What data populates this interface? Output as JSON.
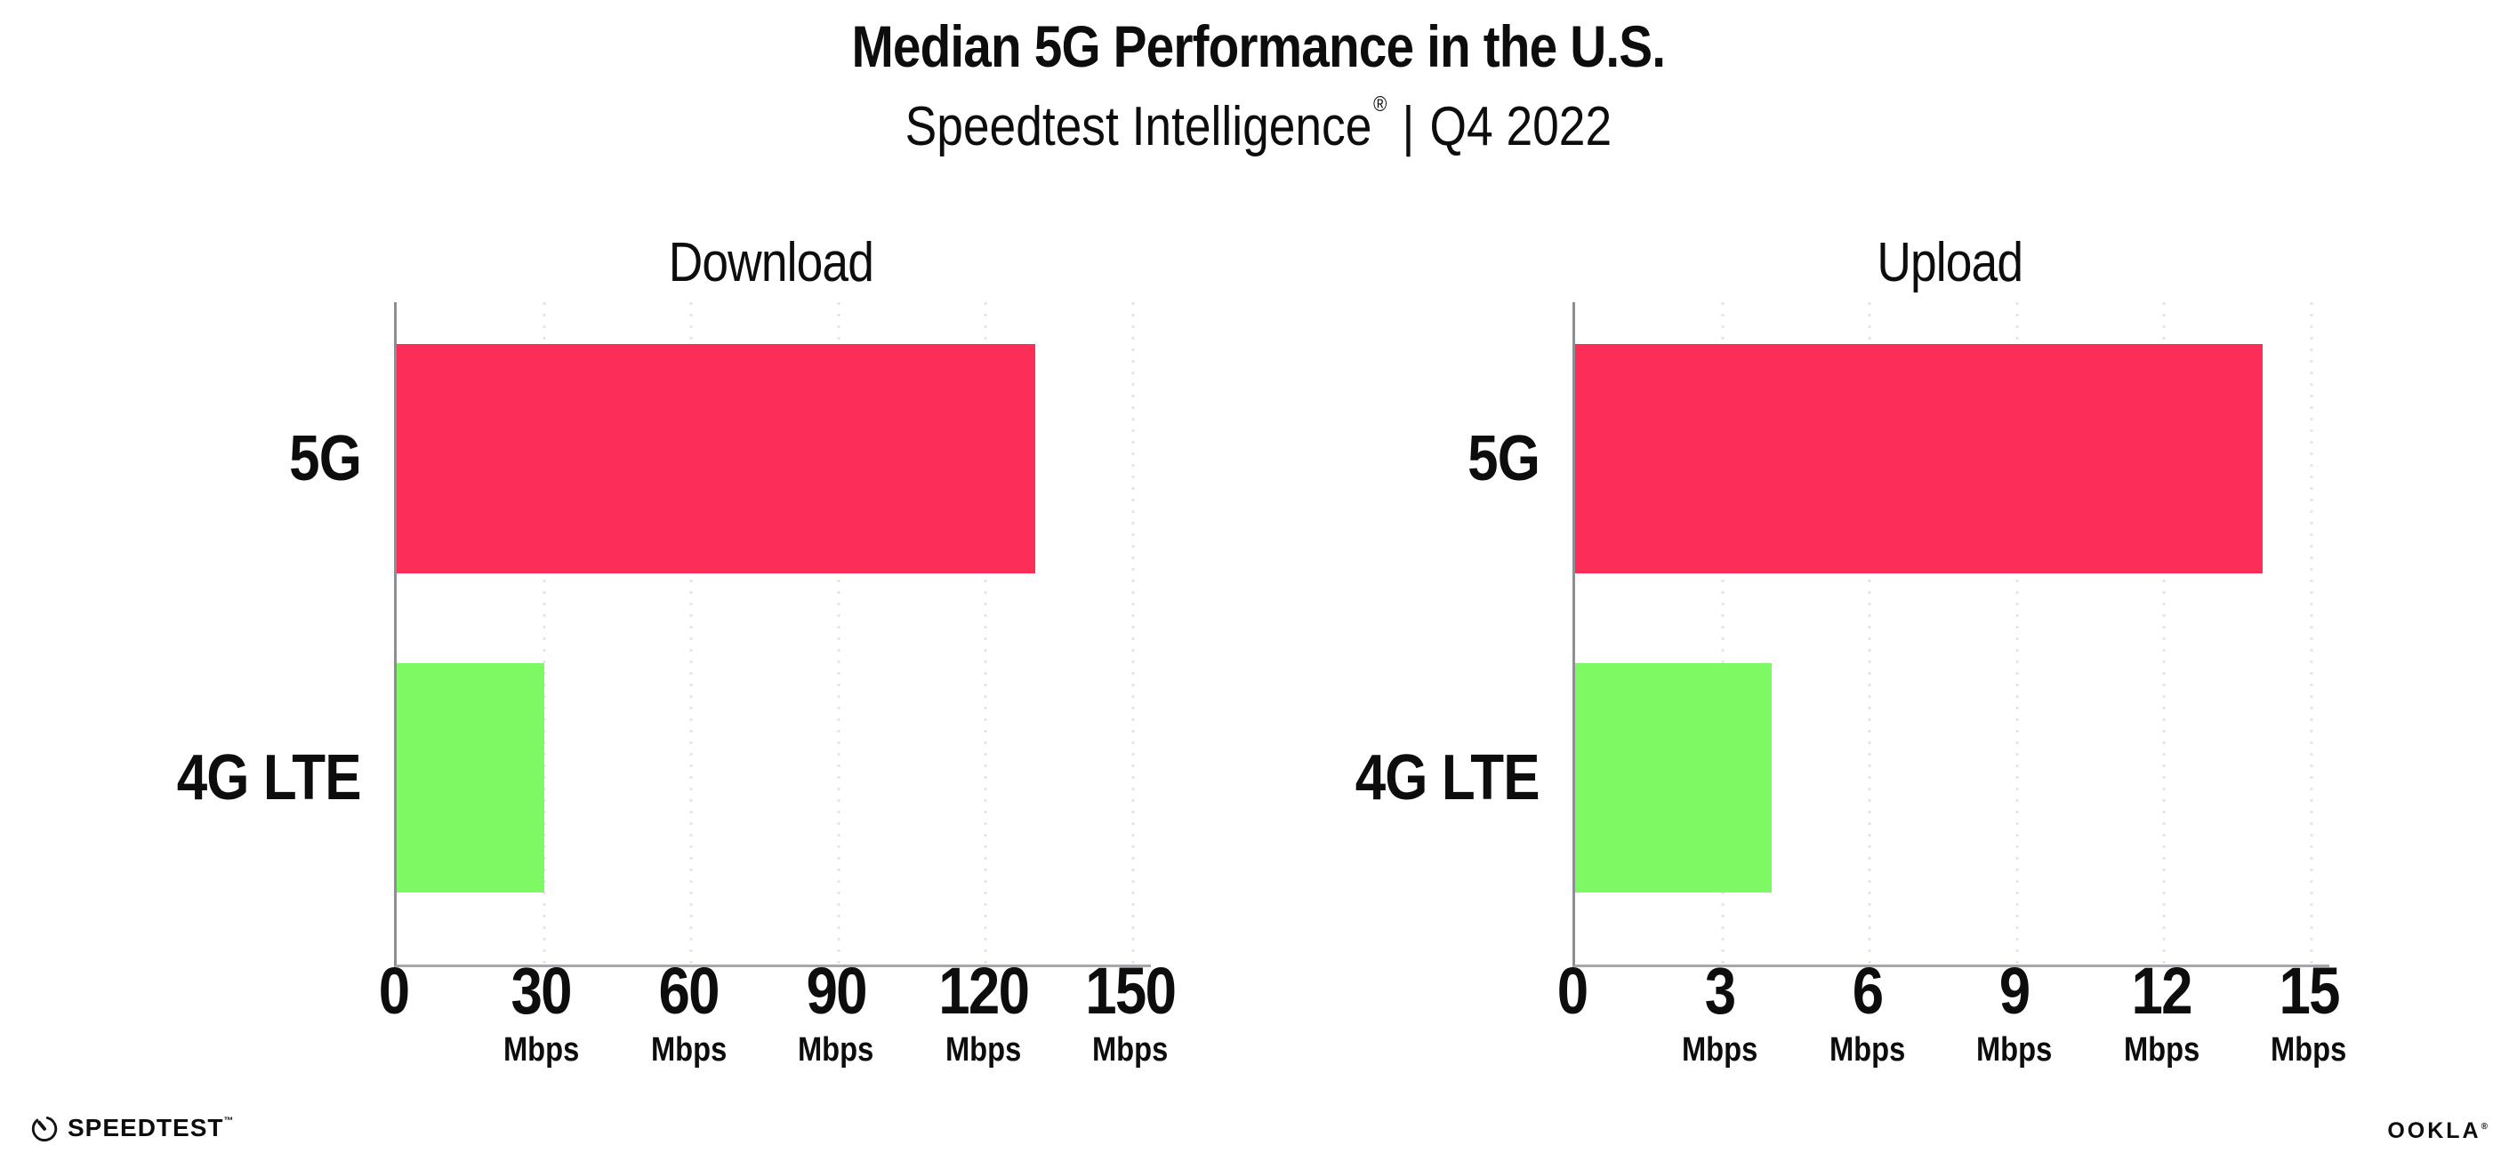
{
  "header": {
    "title": "Median 5G Performance in the U.S.",
    "subtitle_brand": "Speedtest Intelligence",
    "subtitle_reg_mark": "®",
    "subtitle_separator": "|",
    "subtitle_period": "Q4 2022"
  },
  "colors": {
    "bar_5g": "#FC2D56",
    "bar_4g_lte": "#7CF963",
    "axis_line": "#8d8d94",
    "gridline": "#e4e4ee",
    "text": "#0d0d0d"
  },
  "chart_data": [
    {
      "type": "bar",
      "orientation": "horizontal",
      "title": "Download",
      "categories": [
        "5G",
        "4G LTE"
      ],
      "values": [
        130,
        30
      ],
      "bar_colors": [
        "#FC2D56",
        "#7CF963"
      ],
      "unit": "Mbps",
      "tick_unit_label": "Mbps",
      "xlim": [
        0,
        150
      ],
      "xticks": [
        0,
        30,
        60,
        90,
        120,
        150
      ],
      "grid": "dotted-vertical",
      "legend": "none",
      "xlabel": "",
      "ylabel": ""
    },
    {
      "type": "bar",
      "orientation": "horizontal",
      "title": "Upload",
      "categories": [
        "5G",
        "4G LTE"
      ],
      "values": [
        14,
        4
      ],
      "bar_colors": [
        "#FC2D56",
        "#7CF963"
      ],
      "unit": "Mbps",
      "tick_unit_label": "Mbps",
      "xlim": [
        0,
        15
      ],
      "xticks": [
        0,
        3,
        6,
        9,
        12,
        15
      ],
      "grid": "dotted-vertical",
      "legend": "none",
      "xlabel": "",
      "ylabel": ""
    }
  ],
  "footer": {
    "speedtest_logo_text": "SPEEDTEST",
    "speedtest_trademark": "™",
    "ookla_logo_text": "OOKLA",
    "ookla_reg_mark": "®"
  }
}
